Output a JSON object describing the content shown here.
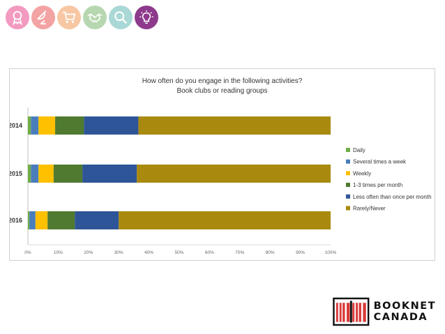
{
  "header_icons": [
    {
      "name": "award-ribbon-icon",
      "color": "#f29ac0"
    },
    {
      "name": "satellite-dish-icon",
      "color": "#f3a3a3"
    },
    {
      "name": "shopping-cart-icon",
      "color": "#f6c7a2"
    },
    {
      "name": "handshake-icon",
      "color": "#b7d7b0"
    },
    {
      "name": "magnifier-icon",
      "color": "#a9d8d6"
    },
    {
      "name": "lightbulb-icon",
      "color": "#8e3a8c"
    }
  ],
  "logo": {
    "line1": "BOOKNET",
    "line2": "CANADA",
    "mark_color": "#d93a3a"
  },
  "chart_data": {
    "type": "bar",
    "orientation": "horizontal",
    "stacked": true,
    "percent": true,
    "title": "How often do you engage in the following activities?",
    "subtitle": "Book clubs or reading groups",
    "categories": [
      "2014",
      "2015",
      "2016"
    ],
    "series": [
      {
        "name": "Daily",
        "color": "#70ad47",
        "values": [
          1,
          1,
          0.5
        ]
      },
      {
        "name": "Several times a week",
        "color": "#4a7ebb",
        "values": [
          2.5,
          2.5,
          2
        ]
      },
      {
        "name": "Weekly",
        "color": "#ffc000",
        "values": [
          5.5,
          5,
          4
        ]
      },
      {
        "name": "1-3 times per month",
        "color": "#4f7a2f",
        "values": [
          9.5,
          9.5,
          9
        ]
      },
      {
        "name": "Less often than once per month",
        "color": "#2e5597",
        "values": [
          18,
          18,
          14.5
        ]
      },
      {
        "name": "Rarely/Never",
        "color": "#a98a0f",
        "values": [
          63.5,
          64,
          70
        ]
      }
    ],
    "xlim": [
      0,
      100
    ],
    "x_ticks": [
      "0%",
      "10%",
      "20%",
      "30%",
      "40%",
      "50%",
      "60%",
      "70%",
      "80%",
      "90%",
      "100%"
    ],
    "gridlines": false,
    "legend_position": "right"
  }
}
